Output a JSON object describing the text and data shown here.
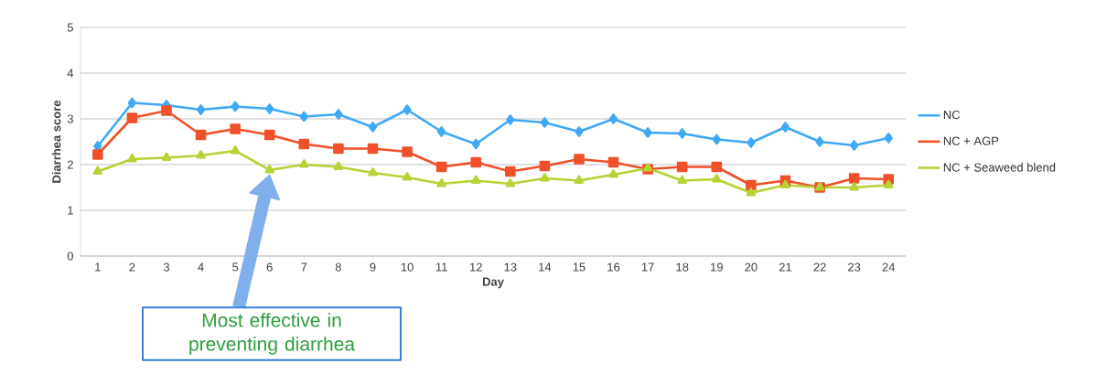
{
  "chart_data": {
    "type": "line",
    "xlabel": "Day",
    "ylabel": "Diarrhea score",
    "categories": [
      "1",
      "2",
      "3",
      "4",
      "5",
      "6",
      "7",
      "8",
      "9",
      "10",
      "11",
      "12",
      "13",
      "14",
      "15",
      "16",
      "17",
      "18",
      "19",
      "20",
      "21",
      "22",
      "23",
      "24"
    ],
    "series": [
      {
        "name": "NC",
        "color": "#3fa9f5",
        "marker": "diamond",
        "values": [
          2.4,
          3.35,
          3.3,
          3.2,
          3.27,
          3.22,
          3.05,
          3.1,
          2.82,
          3.2,
          2.72,
          2.45,
          2.98,
          2.92,
          2.72,
          3.0,
          2.7,
          2.68,
          2.55,
          2.48,
          2.82,
          2.5,
          2.42,
          2.58
        ]
      },
      {
        "name": "NC + AGP",
        "color": "#f0502a",
        "marker": "square",
        "values": [
          2.22,
          3.02,
          3.18,
          2.65,
          2.78,
          2.65,
          2.45,
          2.35,
          2.35,
          2.28,
          1.95,
          2.05,
          1.85,
          1.97,
          2.12,
          2.05,
          1.9,
          1.95,
          1.95,
          1.55,
          1.65,
          1.5,
          1.7,
          1.68
        ]
      },
      {
        "name": "NC + Seaweed blend",
        "color": "#b5d334",
        "marker": "triangle",
        "values": [
          1.85,
          2.12,
          2.15,
          2.2,
          2.3,
          1.88,
          2.0,
          1.95,
          1.82,
          1.72,
          1.58,
          1.65,
          1.58,
          1.7,
          1.65,
          1.78,
          1.92,
          1.65,
          1.68,
          1.38,
          1.55,
          1.5,
          1.5,
          1.55
        ]
      }
    ],
    "ylim": [
      0,
      5
    ],
    "yticks": [
      0,
      1,
      2,
      3,
      4,
      5
    ],
    "grid": "y",
    "legend": "right",
    "line_style": "solid",
    "annotations": [
      "Most effective in preventing diarrhea"
    ]
  }
}
